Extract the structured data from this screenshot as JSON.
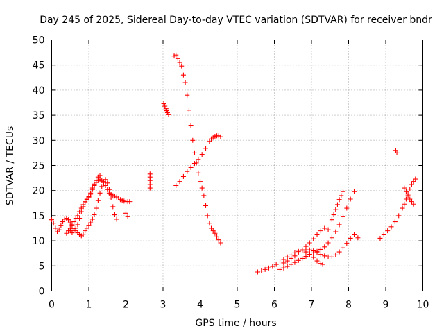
{
  "chart_data": {
    "type": "scatter",
    "title": "Day 245 of 2025, Sidereal Day-to-day VTEC variation (SDTVAR) for receiver bndr",
    "xlabel": "GPS time / hours",
    "ylabel": "SDTVAR / TECUs",
    "xlim": [
      0,
      10
    ],
    "ylim": [
      0,
      50
    ],
    "xticks": [
      "0",
      "1",
      "2",
      "3",
      "4",
      "5",
      "6",
      "7",
      "8",
      "9",
      "10"
    ],
    "yticks": [
      "0",
      "5",
      "10",
      "15",
      "20",
      "25",
      "30",
      "35",
      "40",
      "45",
      "50"
    ],
    "grid": true,
    "legend": "none",
    "marker": "plus",
    "color": "#ff0000",
    "series": [
      {
        "x": [
          0.0,
          0.05,
          0.1,
          0.15,
          0.2,
          0.25,
          0.3,
          0.35,
          0.4,
          0.45,
          0.5,
          0.55,
          0.6,
          0.65,
          0.7,
          0.75,
          0.8,
          0.85
        ],
        "y": [
          14.2,
          13.5,
          12.5,
          11.8,
          12.2,
          13.0,
          13.8,
          14.3,
          14.5,
          14.2,
          13.6,
          13.0,
          12.4,
          12.0,
          11.6,
          11.2,
          11.0,
          11.3
        ]
      },
      {
        "x": [
          0.4,
          0.45,
          0.5,
          0.55,
          0.6,
          0.65,
          0.7,
          0.75,
          0.8,
          0.85,
          0.9,
          0.95,
          1.0,
          1.05,
          1.1,
          1.15,
          1.2,
          1.25,
          1.3
        ],
        "y": [
          11.5,
          12.0,
          12.5,
          13.2,
          13.8,
          14.5,
          15.0,
          15.8,
          16.5,
          17.2,
          17.8,
          18.3,
          18.8,
          19.5,
          20.5,
          21.3,
          22.0,
          22.7,
          23.0
        ]
      },
      {
        "x": [
          0.5,
          0.55,
          0.6,
          0.65,
          0.7,
          0.75,
          0.8,
          0.85,
          0.9,
          0.95,
          1.0,
          1.05,
          1.1,
          1.15,
          1.2,
          1.25,
          1.3,
          1.35,
          1.4,
          1.45,
          1.5,
          1.55,
          1.6,
          1.65,
          1.7,
          1.75,
          1.8,
          1.85,
          1.9,
          1.95,
          2.0,
          2.05,
          2.1
        ],
        "y": [
          12.0,
          11.6,
          12.0,
          12.5,
          13.2,
          14.5,
          15.8,
          16.8,
          17.6,
          18.2,
          18.6,
          19.3,
          20.2,
          21.0,
          21.6,
          22.0,
          22.2,
          22.0,
          21.6,
          21.0,
          20.2,
          19.5,
          19.2,
          19.0,
          18.9,
          18.7,
          18.5,
          18.2,
          18.0,
          17.9,
          17.8,
          17.8,
          17.8
        ]
      },
      {
        "x": [
          0.9,
          0.95,
          1.0,
          1.05,
          1.1,
          1.15,
          1.2,
          1.25,
          1.3,
          1.35,
          1.4,
          1.45,
          1.5,
          1.55,
          1.6,
          1.65,
          1.7,
          1.75
        ],
        "y": [
          12.0,
          12.5,
          13.0,
          13.6,
          14.3,
          15.2,
          16.5,
          18.0,
          19.5,
          20.8,
          21.8,
          22.2,
          21.5,
          20.2,
          18.5,
          16.8,
          15.2,
          14.3
        ]
      },
      {
        "x": [
          2.0,
          2.05
        ],
        "y": [
          15.5,
          14.8
        ]
      },
      {
        "x": [
          2.65,
          2.65,
          2.65,
          2.65,
          2.65
        ],
        "y": [
          20.5,
          21.2,
          22.0,
          22.7,
          23.3
        ]
      },
      {
        "x": [
          3.02,
          3.05,
          3.08,
          3.1,
          3.12,
          3.15
        ],
        "y": [
          37.3,
          36.8,
          36.3,
          35.9,
          35.5,
          35.1
        ]
      },
      {
        "x": [
          3.3,
          3.35,
          3.4,
          3.45,
          3.5,
          3.55,
          3.6,
          3.65,
          3.7,
          3.75,
          3.8,
          3.85,
          3.9,
          3.95,
          4.0,
          4.05,
          4.1,
          4.15,
          4.2,
          4.25,
          4.3,
          4.35,
          4.4,
          4.45,
          4.5,
          4.55
        ],
        "y": [
          46.8,
          47.0,
          46.3,
          45.5,
          44.8,
          43.0,
          41.5,
          39.0,
          36.0,
          33.0,
          30.0,
          27.5,
          25.5,
          23.5,
          21.8,
          20.5,
          19.0,
          17.0,
          15.0,
          13.5,
          12.5,
          12.0,
          11.5,
          10.8,
          10.2,
          9.6
        ]
      },
      {
        "x": [
          3.35,
          3.45,
          3.55,
          3.65,
          3.75,
          3.85,
          3.95,
          4.05,
          4.15,
          4.25,
          4.3,
          4.35,
          4.4,
          4.45,
          4.5,
          4.55
        ],
        "y": [
          21.0,
          21.8,
          22.8,
          23.8,
          24.6,
          25.4,
          26.2,
          27.2,
          28.4,
          29.8,
          30.3,
          30.6,
          30.8,
          30.9,
          30.9,
          30.7
        ]
      },
      {
        "x": [
          5.55,
          5.65,
          5.75,
          5.85,
          5.95,
          6.05,
          6.15,
          6.25,
          6.35,
          6.45,
          6.55,
          6.65,
          6.75,
          6.85,
          6.95,
          7.05,
          7.15,
          7.25,
          7.35,
          7.45,
          7.55,
          7.65,
          7.75,
          7.85,
          7.95,
          8.05,
          8.15,
          8.25
        ],
        "y": [
          3.8,
          4.0,
          4.3,
          4.6,
          4.9,
          5.3,
          5.8,
          6.3,
          6.8,
          7.2,
          7.6,
          7.9,
          8.1,
          8.2,
          8.2,
          8.0,
          7.7,
          7.3,
          7.0,
          6.8,
          6.8,
          7.2,
          7.8,
          8.6,
          9.5,
          10.5,
          11.2,
          10.6
        ]
      },
      {
        "x": [
          6.15,
          6.25,
          6.35,
          6.45,
          6.55,
          6.65,
          6.75,
          6.85,
          6.95,
          7.05,
          7.15,
          7.25,
          7.35,
          7.45,
          7.55,
          7.65,
          7.75,
          7.85,
          7.95,
          8.05,
          8.15
        ],
        "y": [
          4.3,
          4.6,
          4.9,
          5.3,
          5.7,
          6.1,
          6.5,
          6.9,
          7.3,
          7.6,
          7.9,
          8.3,
          8.8,
          9.6,
          10.6,
          11.8,
          13.2,
          14.8,
          16.5,
          18.3,
          19.8
        ]
      },
      {
        "x": [
          6.25,
          6.35,
          6.45,
          6.55,
          6.65,
          6.75,
          6.85,
          6.95,
          7.05,
          7.15,
          7.25,
          7.35,
          7.45
        ],
        "y": [
          5.6,
          6.0,
          6.5,
          7.0,
          7.6,
          8.2,
          8.9,
          9.6,
          10.4,
          11.2,
          12.0,
          12.5,
          12.2
        ]
      },
      {
        "x": [
          6.75,
          6.85,
          6.95,
          7.05,
          7.15,
          7.25,
          7.3
        ],
        "y": [
          8.2,
          7.8,
          7.3,
          6.7,
          6.0,
          5.5,
          5.3
        ]
      },
      {
        "x": [
          7.55,
          7.6,
          7.65,
          7.7,
          7.75,
          7.8,
          7.85
        ],
        "y": [
          14.2,
          15.2,
          16.2,
          17.2,
          18.2,
          19.0,
          19.8
        ]
      },
      {
        "x": [
          8.85,
          8.95,
          9.05,
          9.15,
          9.25,
          9.35,
          9.45,
          9.5,
          9.55,
          9.6,
          9.65,
          9.7,
          9.75,
          9.8
        ],
        "y": [
          10.5,
          11.2,
          12.0,
          12.8,
          13.8,
          15.0,
          16.5,
          17.3,
          18.3,
          19.3,
          20.3,
          21.2,
          21.8,
          22.3
        ]
      },
      {
        "x": [
          9.5,
          9.55,
          9.6,
          9.65,
          9.7,
          9.75
        ],
        "y": [
          20.5,
          19.8,
          19.0,
          18.3,
          17.8,
          17.3
        ]
      },
      {
        "x": [
          9.27,
          9.3
        ],
        "y": [
          28.0,
          27.5
        ]
      }
    ]
  }
}
